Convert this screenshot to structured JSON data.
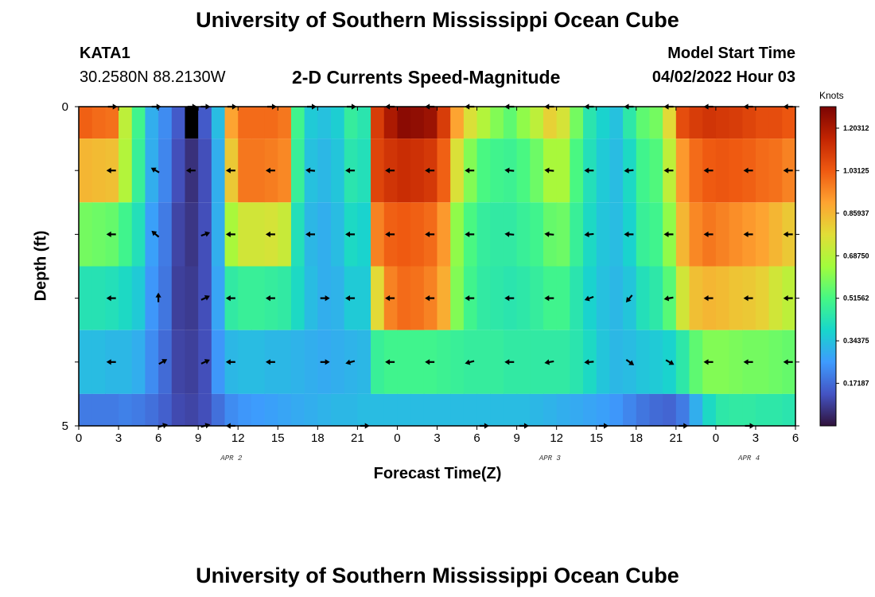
{
  "header": {
    "title": "University of Southern Mississippi Ocean Cube",
    "station": "KATA1",
    "coords": "30.2580N  88.2130W",
    "plot_title": "2-D Currents Speed-Magnitude",
    "model_label": "Model Start Time",
    "model_time": "04/02/2022 Hour 03",
    "bottom_title": "University of Southern Mississippi Ocean Cube"
  },
  "chart_data": {
    "type": "heatmap",
    "title": "2-D Currents Speed-Magnitude",
    "xlabel": "Forecast Time(Z)",
    "ylabel": "Depth (ft)",
    "x_tick_labels": [
      "0",
      "3",
      "6",
      "9",
      "12",
      "15",
      "18",
      "21",
      "0",
      "3",
      "6",
      "9",
      "12",
      "15",
      "18",
      "21",
      "0",
      "3",
      "6"
    ],
    "date_labels": [
      {
        "text": "APR 2",
        "hour": 11.5
      },
      {
        "text": "APR 3",
        "hour": 35.5
      },
      {
        "text": "APR 4",
        "hour": 50.5
      }
    ],
    "y_tick_labels": [
      {
        "value": 0,
        "text": "0"
      },
      {
        "value": 5,
        "text": "5"
      }
    ],
    "ylim": [
      0,
      5
    ],
    "xlim": [
      0,
      54
    ],
    "colorbar": {
      "unit": "Knots",
      "min": 0,
      "max": 1.29,
      "tick_labels": [
        "1.20312",
        "1.03125",
        "0.85937",
        "0.68750",
        "0.51562",
        "0.34375",
        "0.17187"
      ],
      "tick_values": [
        1.20312,
        1.03125,
        0.85937,
        0.6875,
        0.51562,
        0.34375,
        0.17187
      ]
    },
    "depth_rows": [
      {
        "depth_top": 0,
        "depth_bottom": 0.5,
        "speeds": [
          1.02,
          1.0,
          0.99,
          0.7,
          0.5,
          0.3,
          0.23,
          0.14,
          0.1,
          0.14,
          0.33,
          0.9,
          1.0,
          1.0,
          1.0,
          0.98,
          0.5,
          0.36,
          0.34,
          0.37,
          0.47,
          0.44,
          1.1,
          1.2,
          1.26,
          1.25,
          1.23,
          1.1,
          0.9,
          0.76,
          0.68,
          0.6,
          0.55,
          0.62,
          0.7,
          0.8,
          0.75,
          0.58,
          0.44,
          0.38,
          0.34,
          0.45,
          0.55,
          0.58,
          0.78,
          1.06,
          1.1,
          1.12,
          1.11,
          1.1,
          1.08,
          1.06,
          1.06,
          1.04
        ]
      },
      {
        "depth_top": 0.5,
        "depth_bottom": 1.5,
        "speeds": [
          0.86,
          0.85,
          0.84,
          0.68,
          0.48,
          0.3,
          0.22,
          0.12,
          0.06,
          0.12,
          0.3,
          0.82,
          0.98,
          0.98,
          0.97,
          0.95,
          0.48,
          0.34,
          0.32,
          0.35,
          0.44,
          0.42,
          1.08,
          1.12,
          1.14,
          1.13,
          1.11,
          1.02,
          0.76,
          0.6,
          0.52,
          0.5,
          0.49,
          0.52,
          0.57,
          0.66,
          0.66,
          0.52,
          0.42,
          0.36,
          0.33,
          0.4,
          0.5,
          0.53,
          0.7,
          0.92,
          1.0,
          1.03,
          1.04,
          1.03,
          1.02,
          1.0,
          0.99,
          0.96
        ]
      },
      {
        "depth_top": 1.5,
        "depth_bottom": 2.5,
        "speeds": [
          0.58,
          0.57,
          0.56,
          0.5,
          0.42,
          0.27,
          0.2,
          0.1,
          0.07,
          0.12,
          0.3,
          0.66,
          0.74,
          0.74,
          0.75,
          0.72,
          0.42,
          0.32,
          0.3,
          0.33,
          0.4,
          0.38,
          0.96,
          1.02,
          1.03,
          1.02,
          1.0,
          0.92,
          0.62,
          0.52,
          0.47,
          0.46,
          0.46,
          0.48,
          0.5,
          0.56,
          0.57,
          0.48,
          0.4,
          0.35,
          0.33,
          0.38,
          0.48,
          0.5,
          0.62,
          0.86,
          0.95,
          0.98,
          0.96,
          0.94,
          0.92,
          0.9,
          0.86,
          0.82
        ]
      },
      {
        "depth_top": 2.5,
        "depth_bottom": 3.5,
        "speeds": [
          0.43,
          0.43,
          0.42,
          0.4,
          0.36,
          0.25,
          0.19,
          0.09,
          0.08,
          0.12,
          0.28,
          0.46,
          0.48,
          0.48,
          0.47,
          0.46,
          0.4,
          0.33,
          0.3,
          0.31,
          0.36,
          0.36,
          0.78,
          0.96,
          1.0,
          0.99,
          0.96,
          0.88,
          0.6,
          0.5,
          0.46,
          0.45,
          0.44,
          0.45,
          0.47,
          0.5,
          0.5,
          0.44,
          0.38,
          0.34,
          0.32,
          0.35,
          0.42,
          0.45,
          0.54,
          0.74,
          0.84,
          0.86,
          0.85,
          0.83,
          0.82,
          0.8,
          0.74,
          0.7
        ]
      },
      {
        "depth_top": 3.5,
        "depth_bottom": 4.5,
        "speeds": [
          0.33,
          0.33,
          0.32,
          0.32,
          0.3,
          0.23,
          0.17,
          0.1,
          0.09,
          0.12,
          0.25,
          0.32,
          0.33,
          0.33,
          0.32,
          0.32,
          0.31,
          0.3,
          0.29,
          0.3,
          0.31,
          0.32,
          0.48,
          0.5,
          0.5,
          0.5,
          0.5,
          0.49,
          0.48,
          0.47,
          0.47,
          0.47,
          0.46,
          0.46,
          0.46,
          0.46,
          0.46,
          0.44,
          0.4,
          0.35,
          0.32,
          0.33,
          0.35,
          0.36,
          0.38,
          0.45,
          0.55,
          0.6,
          0.6,
          0.59,
          0.58,
          0.58,
          0.57,
          0.56
        ]
      },
      {
        "depth_top": 4.5,
        "depth_bottom": 5,
        "speeds": [
          0.2,
          0.2,
          0.2,
          0.21,
          0.2,
          0.18,
          0.15,
          0.11,
          0.1,
          0.12,
          0.18,
          0.23,
          0.25,
          0.26,
          0.27,
          0.28,
          0.29,
          0.3,
          0.31,
          0.32,
          0.32,
          0.33,
          0.33,
          0.33,
          0.33,
          0.33,
          0.33,
          0.33,
          0.33,
          0.33,
          0.33,
          0.33,
          0.33,
          0.33,
          0.32,
          0.31,
          0.3,
          0.29,
          0.28,
          0.27,
          0.25,
          0.22,
          0.19,
          0.17,
          0.16,
          0.2,
          0.3,
          0.4,
          0.45,
          0.46,
          0.46,
          0.45,
          0.45,
          0.44
        ]
      }
    ],
    "missing_cells": [
      {
        "hour_index": 8,
        "row": 0
      }
    ],
    "vector_rows": [
      {
        "depth": 0,
        "vectors": [
          [
            2.5,
            0
          ],
          [
            5.8,
            0
          ],
          [
            8.5,
            0
          ],
          [
            9.5,
            0
          ],
          [
            11.5,
            0
          ],
          [
            14.5,
            0
          ],
          [
            17.5,
            0
          ],
          [
            20.5,
            0
          ],
          [
            23.5,
            180
          ],
          [
            26.5,
            180
          ],
          [
            29.5,
            180
          ],
          [
            32.5,
            180
          ],
          [
            35.5,
            180
          ],
          [
            38.5,
            180
          ],
          [
            41.5,
            180
          ],
          [
            44.5,
            180
          ],
          [
            47.5,
            180
          ],
          [
            50.5,
            180
          ],
          [
            53.5,
            180
          ]
        ]
      },
      {
        "depth": 1,
        "vectors": [
          [
            2.5,
            180
          ],
          [
            5.8,
            150
          ],
          [
            8.5,
            180
          ],
          [
            11.5,
            180
          ],
          [
            14.5,
            180
          ],
          [
            17.5,
            175
          ],
          [
            20.5,
            180
          ],
          [
            23.5,
            180
          ],
          [
            26.5,
            180
          ],
          [
            29.5,
            180
          ],
          [
            32.5,
            175
          ],
          [
            35.5,
            175
          ],
          [
            38.5,
            180
          ],
          [
            41.5,
            185
          ],
          [
            44.5,
            180
          ],
          [
            47.5,
            180
          ],
          [
            50.5,
            180
          ],
          [
            53.5,
            180
          ]
        ]
      },
      {
        "depth": 2,
        "vectors": [
          [
            2.5,
            180
          ],
          [
            5.8,
            140
          ],
          [
            9.5,
            20
          ],
          [
            11.5,
            180
          ],
          [
            14.5,
            180
          ],
          [
            17.5,
            180
          ],
          [
            20.5,
            180
          ],
          [
            23.5,
            180
          ],
          [
            26.5,
            180
          ],
          [
            29.5,
            180
          ],
          [
            32.5,
            175
          ],
          [
            35.5,
            175
          ],
          [
            38.5,
            185
          ],
          [
            41.5,
            180
          ],
          [
            44.5,
            180
          ],
          [
            47.5,
            180
          ],
          [
            50.5,
            180
          ],
          [
            53.5,
            180
          ]
        ]
      },
      {
        "depth": 3,
        "vectors": [
          [
            2.5,
            180
          ],
          [
            6.0,
            90
          ],
          [
            9.5,
            25
          ],
          [
            11.5,
            180
          ],
          [
            14.5,
            180
          ],
          [
            18.5,
            0
          ],
          [
            20.5,
            180
          ],
          [
            23.5,
            180
          ],
          [
            26.5,
            180
          ],
          [
            29.5,
            180
          ],
          [
            32.5,
            180
          ],
          [
            35.5,
            180
          ],
          [
            38.5,
            200
          ],
          [
            41.5,
            230
          ],
          [
            44.5,
            190
          ],
          [
            47.5,
            180
          ],
          [
            50.5,
            180
          ],
          [
            53.5,
            180
          ]
        ]
      },
      {
        "depth": 4,
        "vectors": [
          [
            2.5,
            180
          ],
          [
            6.3,
            30
          ],
          [
            9.5,
            25
          ],
          [
            11.5,
            180
          ],
          [
            14.5,
            180
          ],
          [
            18.5,
            0
          ],
          [
            20.5,
            195
          ],
          [
            23.5,
            180
          ],
          [
            26.5,
            180
          ],
          [
            29.5,
            195
          ],
          [
            32.5,
            180
          ],
          [
            35.5,
            190
          ],
          [
            38.5,
            185
          ],
          [
            41.5,
            -35
          ],
          [
            44.5,
            -30
          ],
          [
            47.5,
            180
          ],
          [
            50.5,
            180
          ],
          [
            53.5,
            180
          ]
        ]
      },
      {
        "depth": 5,
        "vectors": [
          [
            6.3,
            15
          ],
          [
            9.5,
            15
          ],
          [
            11.5,
            180
          ],
          [
            21.5,
            0
          ],
          [
            30.5,
            0
          ],
          [
            33.5,
            0
          ],
          [
            39.5,
            0
          ],
          [
            45.5,
            0
          ],
          [
            50.5,
            0
          ]
        ]
      }
    ]
  }
}
